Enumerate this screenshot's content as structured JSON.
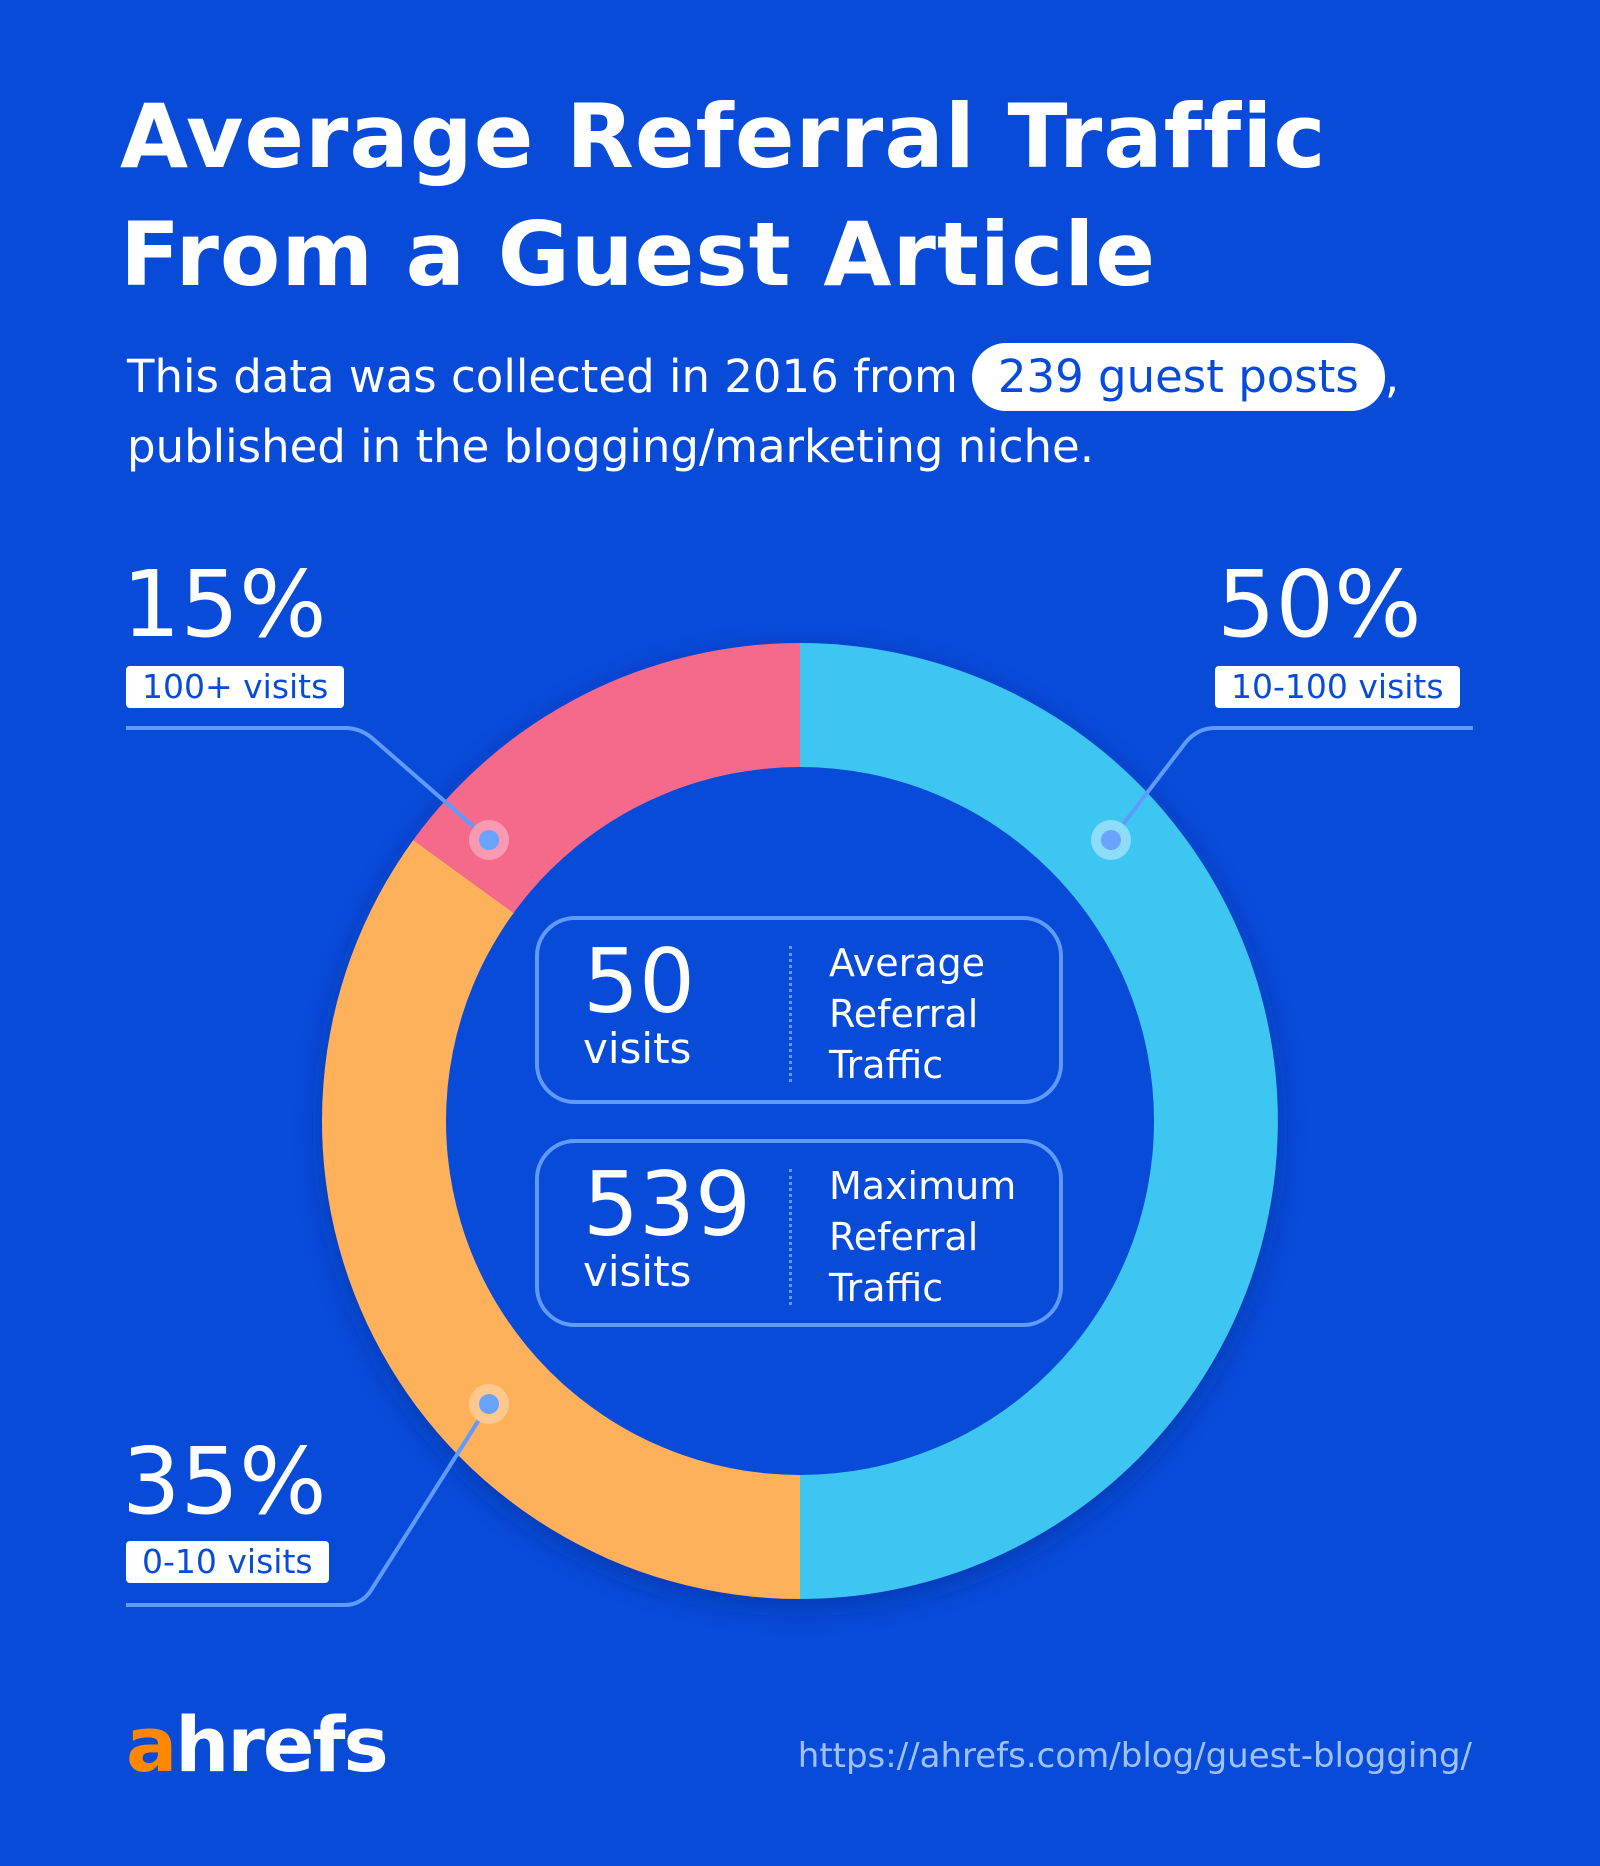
{
  "title_lines": [
    "Average Referral Traffic",
    "From a Guest Article"
  ],
  "subtitle": {
    "before": "This data was collected in 2016 from",
    "highlight": "239 guest posts",
    "after": ",",
    "line2": "published in the blogging/marketing niche."
  },
  "chart_data": {
    "type": "pie",
    "variant": "donut",
    "slices": [
      {
        "percent_label": "50%",
        "category": "10-100 visits",
        "value": 50,
        "color": "#3ec6f2"
      },
      {
        "percent_label": "35%",
        "category": "0-10 visits",
        "value": 35,
        "color": "#ffb05a"
      },
      {
        "percent_label": "15%",
        "category": "100+ visits",
        "value": 15,
        "color": "#f56a8a"
      }
    ]
  },
  "stats": [
    {
      "value": "50",
      "unit": "visits",
      "label": "Average Referral Traffic"
    },
    {
      "value": "539",
      "unit": "visits",
      "label": "Maximum Referral Traffic"
    }
  ],
  "footer": {
    "logo_a": "a",
    "logo_rest": "hrefs",
    "url": "https://ahrefs.com/blog/guest-blogging/"
  },
  "colors": {
    "background": "#084bd9",
    "leader_line": "#5f9bff",
    "logo_accent": "#ff8800"
  }
}
